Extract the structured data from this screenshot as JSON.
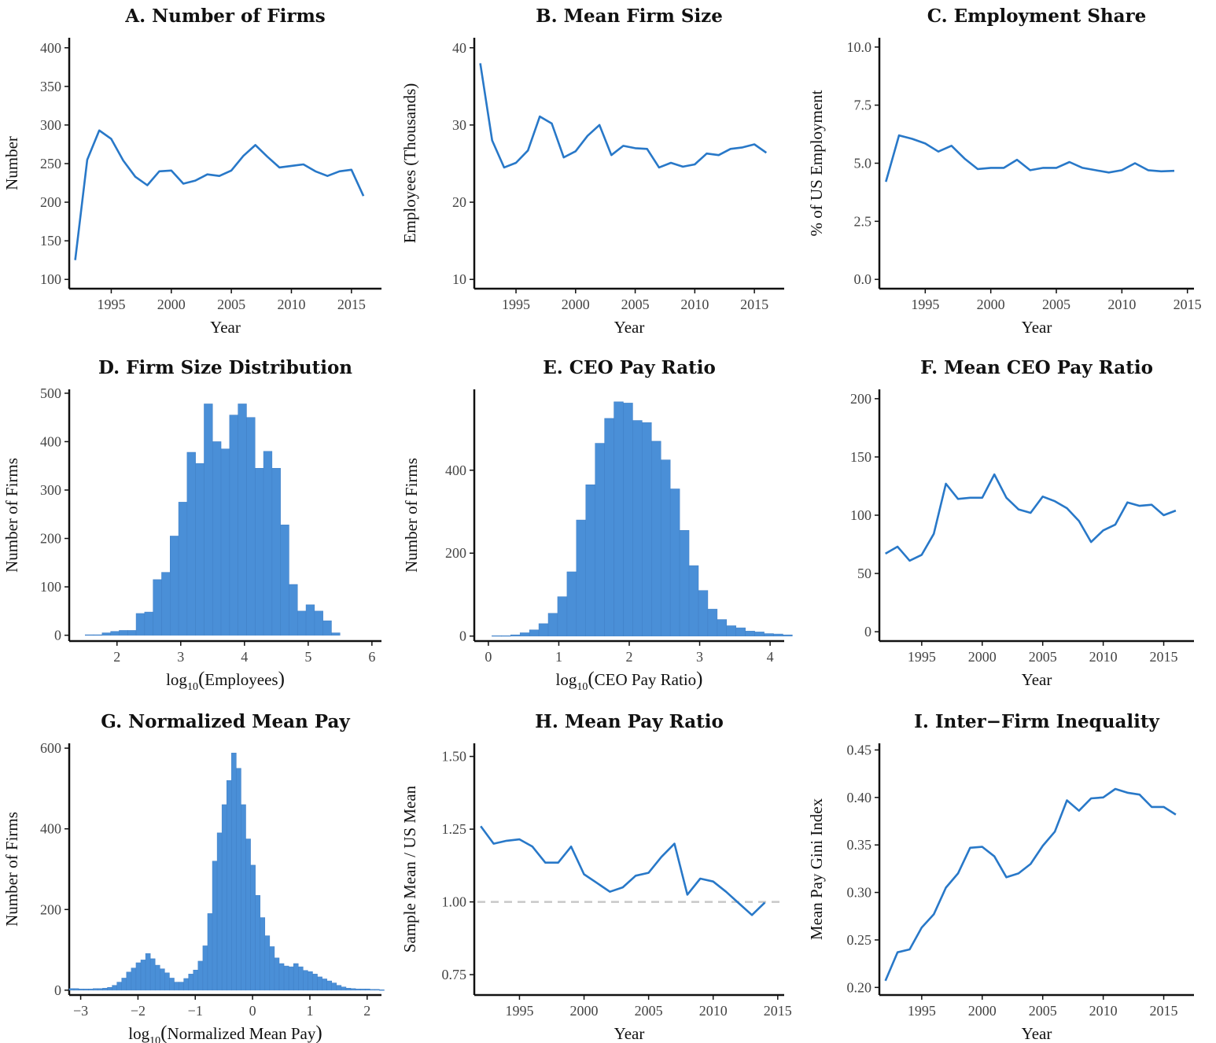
{
  "chart_data": [
    {
      "id": "A",
      "type": "line",
      "title": "A.  Number of Firms",
      "xlabel": "Year",
      "ylabel": "Number",
      "xlim": [
        1991.5,
        2017.5
      ],
      "ylim": [
        88,
        413
      ],
      "xticks": [
        1995,
        2000,
        2005,
        2010,
        2015
      ],
      "yticks": [
        100,
        150,
        200,
        250,
        300,
        350,
        400
      ],
      "x": [
        1992,
        1993,
        1994,
        1995,
        1996,
        1997,
        1998,
        1999,
        2000,
        2001,
        2002,
        2003,
        2004,
        2005,
        2006,
        2007,
        2008,
        2009,
        2010,
        2011,
        2012,
        2013,
        2014,
        2015,
        2016
      ],
      "y": [
        125,
        255,
        293,
        282,
        254,
        233,
        222,
        240,
        241,
        224,
        228,
        236,
        234,
        241,
        260,
        274,
        259,
        245,
        247,
        249,
        240,
        234,
        240,
        242,
        208
      ]
    },
    {
      "id": "B",
      "type": "line",
      "title": "B.  Mean Firm Size",
      "xlabel": "Year",
      "ylabel": "Employees (Thousands)",
      "xlim": [
        1991.5,
        2017.5
      ],
      "ylim": [
        8.8,
        41.3
      ],
      "xticks": [
        1995,
        2000,
        2005,
        2010,
        2015
      ],
      "yticks": [
        10,
        20,
        30,
        40
      ],
      "x": [
        1992,
        1993,
        1994,
        1995,
        1996,
        1997,
        1998,
        1999,
        2000,
        2001,
        2002,
        2003,
        2004,
        2005,
        2006,
        2007,
        2008,
        2009,
        2010,
        2011,
        2012,
        2013,
        2014,
        2015,
        2016
      ],
      "y": [
        38.0,
        28.0,
        24.5,
        25.1,
        26.7,
        31.1,
        30.2,
        25.8,
        26.6,
        28.6,
        30.0,
        26.1,
        27.3,
        27.0,
        26.9,
        24.5,
        25.1,
        24.6,
        24.9,
        26.3,
        26.1,
        26.9,
        27.1,
        27.5,
        26.4
      ]
    },
    {
      "id": "C",
      "type": "line",
      "title": "C.  Employment Share",
      "xlabel": "Year",
      "ylabel": "% of US Employment",
      "xlim": [
        1991.5,
        2015.5
      ],
      "ylim": [
        -0.4,
        10.4
      ],
      "xticks": [
        1995,
        2000,
        2005,
        2010,
        2015
      ],
      "yticks": [
        "0.0",
        "2.5",
        "5.0",
        "7.5",
        "10.0"
      ],
      "x": [
        1992,
        1993,
        1994,
        1995,
        1996,
        1997,
        1998,
        1999,
        2000,
        2001,
        2002,
        2003,
        2004,
        2005,
        2006,
        2007,
        2008,
        2009,
        2010,
        2011,
        2012,
        2013,
        2014
      ],
      "y": [
        4.2,
        6.2,
        6.05,
        5.85,
        5.5,
        5.75,
        5.2,
        4.75,
        4.8,
        4.8,
        5.15,
        4.7,
        4.8,
        4.8,
        5.05,
        4.8,
        4.7,
        4.6,
        4.7,
        5.0,
        4.7,
        4.65,
        4.67
      ]
    },
    {
      "id": "D",
      "type": "bar",
      "title": "D.  Firm Size Distribution",
      "xlabel": "log10(Employees)",
      "ylabel": "Number of Firms",
      "xlim": [
        1.25,
        6.15
      ],
      "ylim": [
        -12,
        508
      ],
      "xticks": [
        2,
        3,
        4,
        5,
        6
      ],
      "yticks": [
        0,
        100,
        200,
        300,
        400,
        500
      ],
      "bin_start": 1.5,
      "bin_width": 0.1333,
      "values": [
        1,
        1,
        5,
        8,
        10,
        10,
        45,
        48,
        115,
        130,
        205,
        275,
        378,
        355,
        478,
        400,
        385,
        455,
        478,
        450,
        345,
        380,
        345,
        228,
        105,
        50,
        63,
        50,
        30,
        5
      ]
    },
    {
      "id": "E",
      "type": "bar",
      "title": "E.  CEO Pay Ratio",
      "xlabel": "log10(CEO Pay Ratio)",
      "ylabel": "Number of Firms",
      "xlim": [
        -0.2,
        4.2
      ],
      "ylim": [
        -12,
        595
      ],
      "xticks": [
        0,
        1,
        2,
        3,
        4
      ],
      "yticks": [
        0,
        200,
        400
      ],
      "bin_start": 0.05,
      "bin_width": 0.1333,
      "values": [
        1,
        1,
        3,
        8,
        15,
        30,
        55,
        95,
        155,
        280,
        365,
        465,
        525,
        565,
        562,
        520,
        515,
        470,
        425,
        355,
        255,
        170,
        110,
        65,
        40,
        25,
        20,
        12,
        10,
        6,
        5,
        3
      ]
    },
    {
      "id": "F",
      "type": "line",
      "title": "F.  Mean CEO Pay Ratio",
      "xlabel": "Year",
      "ylabel": "",
      "xlim": [
        1991.5,
        2017.5
      ],
      "ylim": [
        -8,
        208
      ],
      "xticks": [
        1995,
        2000,
        2005,
        2010,
        2015
      ],
      "yticks": [
        0,
        50,
        100,
        150,
        200
      ],
      "x": [
        1992,
        1993,
        1994,
        1995,
        1996,
        1997,
        1998,
        1999,
        2000,
        2001,
        2002,
        2003,
        2004,
        2005,
        2006,
        2007,
        2008,
        2009,
        2010,
        2011,
        2012,
        2013,
        2014,
        2015,
        2016
      ],
      "y": [
        67,
        73,
        61,
        66,
        84,
        127,
        114,
        115,
        115,
        135,
        115,
        105,
        102,
        116,
        112,
        106,
        95,
        77,
        87,
        92,
        111,
        108,
        109,
        100,
        104
      ]
    },
    {
      "id": "G",
      "type": "bar",
      "title": "G.  Normalized Mean Pay",
      "xlabel": "log10(Normalized Mean Pay)",
      "ylabel": "Number of Firms",
      "xlim": [
        -3.2,
        2.25
      ],
      "ylim": [
        -12,
        612
      ],
      "xticks": [
        "−3",
        "−2",
        "−1",
        "0",
        "1",
        "2"
      ],
      "yticks": [
        0,
        200,
        400,
        600
      ],
      "bin_start": -3.2,
      "bin_width": 0.0833,
      "values": [
        4,
        4,
        3,
        3,
        3,
        4,
        4,
        5,
        7,
        12,
        20,
        30,
        45,
        55,
        68,
        75,
        91,
        78,
        62,
        53,
        43,
        30,
        20,
        20,
        29,
        40,
        50,
        72,
        110,
        190,
        320,
        390,
        460,
        520,
        588,
        550,
        460,
        375,
        310,
        235,
        180,
        135,
        108,
        80,
        66,
        60,
        58,
        66,
        58,
        49,
        46,
        40,
        33,
        28,
        23,
        18,
        12,
        8,
        5,
        4,
        3,
        3,
        3,
        2,
        2,
        1
      ]
    },
    {
      "id": "H",
      "type": "line",
      "title": "H.  Mean Pay Ratio",
      "xlabel": "Year",
      "ylabel": "Sample Mean / US Mean",
      "xlim": [
        1991.5,
        2015.5
      ],
      "ylim": [
        0.68,
        1.545
      ],
      "xticks": [
        1995,
        2000,
        2005,
        2010,
        2015
      ],
      "yticks": [
        "0.75",
        "1.00",
        "1.25",
        "1.50"
      ],
      "reference_line": 1.0,
      "x": [
        1992,
        1993,
        1994,
        1995,
        1996,
        1997,
        1998,
        1999,
        2000,
        2001,
        2002,
        2003,
        2004,
        2005,
        2006,
        2007,
        2008,
        2009,
        2010,
        2011,
        2012,
        2013,
        2014
      ],
      "y": [
        1.26,
        1.2,
        1.21,
        1.215,
        1.19,
        1.135,
        1.135,
        1.19,
        1.095,
        1.065,
        1.035,
        1.05,
        1.09,
        1.1,
        1.155,
        1.2,
        1.025,
        1.08,
        1.07,
        1.035,
        0.995,
        0.955,
        0.998
      ]
    },
    {
      "id": "I",
      "type": "line",
      "title": "I.  Inter−Firm Inequality",
      "xlabel": "Year",
      "ylabel": "Mean Pay Gini Index",
      "xlim": [
        1991.5,
        2017.5
      ],
      "ylim": [
        0.192,
        0.457
      ],
      "xticks": [
        1995,
        2000,
        2005,
        2010,
        2015
      ],
      "yticks": [
        "0.20",
        "0.25",
        "0.30",
        "0.35",
        "0.40",
        "0.45"
      ],
      "x": [
        1992,
        1993,
        1994,
        1995,
        1996,
        1997,
        1998,
        1999,
        2000,
        2001,
        2002,
        2003,
        2004,
        2005,
        2006,
        2007,
        2008,
        2009,
        2010,
        2011,
        2012,
        2013,
        2014,
        2015,
        2016
      ],
      "y": [
        0.207,
        0.237,
        0.24,
        0.263,
        0.277,
        0.305,
        0.32,
        0.347,
        0.348,
        0.338,
        0.316,
        0.32,
        0.33,
        0.349,
        0.364,
        0.397,
        0.386,
        0.399,
        0.4,
        0.409,
        0.405,
        0.403,
        0.39,
        0.39,
        0.382
      ]
    }
  ]
}
